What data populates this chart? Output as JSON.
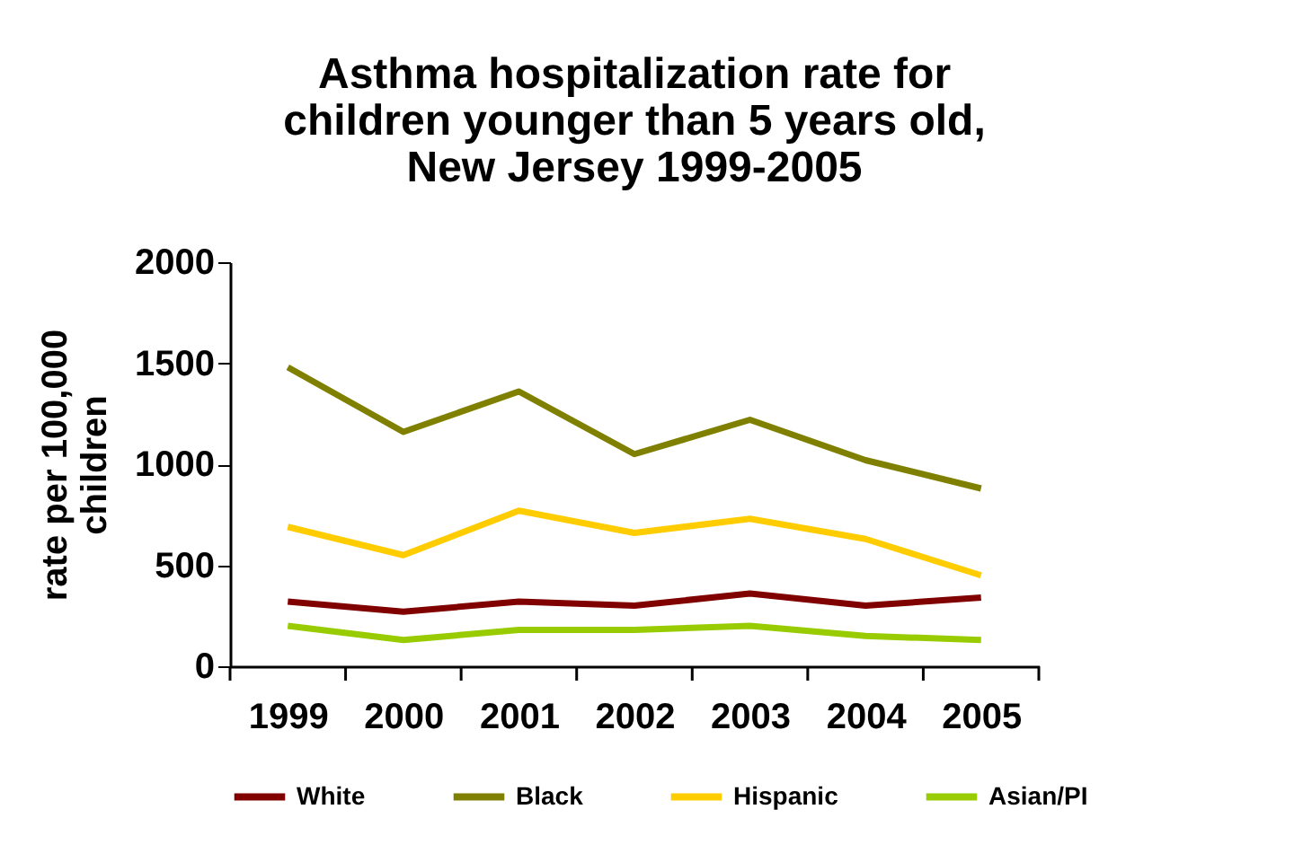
{
  "chart_data": {
    "type": "line",
    "title": [
      "Asthma hospitalization rate for",
      "children younger than 5 years old,",
      "New Jersey 1999-2005"
    ],
    "ylabel": [
      "rate per 100,000",
      "children"
    ],
    "categories": [
      "1999",
      "2000",
      "2001",
      "2002",
      "2003",
      "2004",
      "2005"
    ],
    "series": [
      {
        "name": "White",
        "color": "#800000",
        "values": [
          320,
          270,
          320,
          300,
          360,
          300,
          340
        ]
      },
      {
        "name": "Black",
        "color": "#808000",
        "values": [
          1480,
          1160,
          1360,
          1050,
          1220,
          1020,
          880
        ]
      },
      {
        "name": "Hispanic",
        "color": "#ffcc00",
        "values": [
          690,
          550,
          770,
          660,
          730,
          630,
          450
        ]
      },
      {
        "name": "Asian/PI",
        "color": "#99cc00",
        "values": [
          200,
          130,
          180,
          180,
          200,
          150,
          130
        ]
      }
    ],
    "ylim": [
      0,
      2000
    ],
    "yticks": [
      0,
      500,
      1000,
      1500,
      2000
    ],
    "grid": false,
    "legend": "bottom",
    "marker": "none",
    "line_style": "solid"
  }
}
